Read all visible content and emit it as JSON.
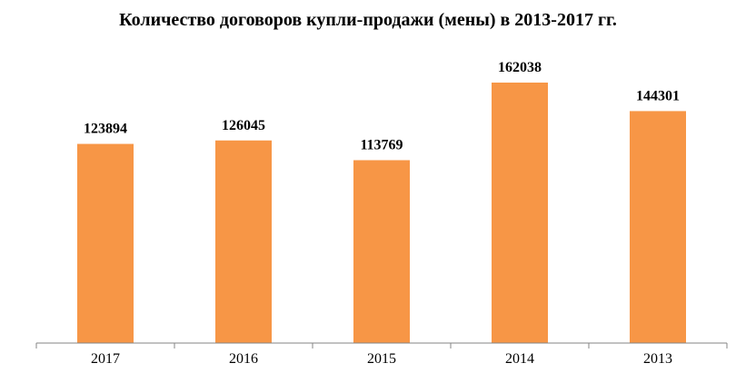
{
  "chart_data": {
    "type": "bar",
    "title": "Количество договоров купли-продажи (мены) в 2013-2017 гг.",
    "categories": [
      "2017",
      "2016",
      "2015",
      "2014",
      "2013"
    ],
    "values": [
      123894,
      126045,
      113769,
      162038,
      144301
    ],
    "xlabel": "",
    "ylabel": "",
    "ylim": [
      0,
      162038
    ],
    "grid": false,
    "legend": "none",
    "bar_color": "#F79646",
    "axis_color": "#868686"
  }
}
